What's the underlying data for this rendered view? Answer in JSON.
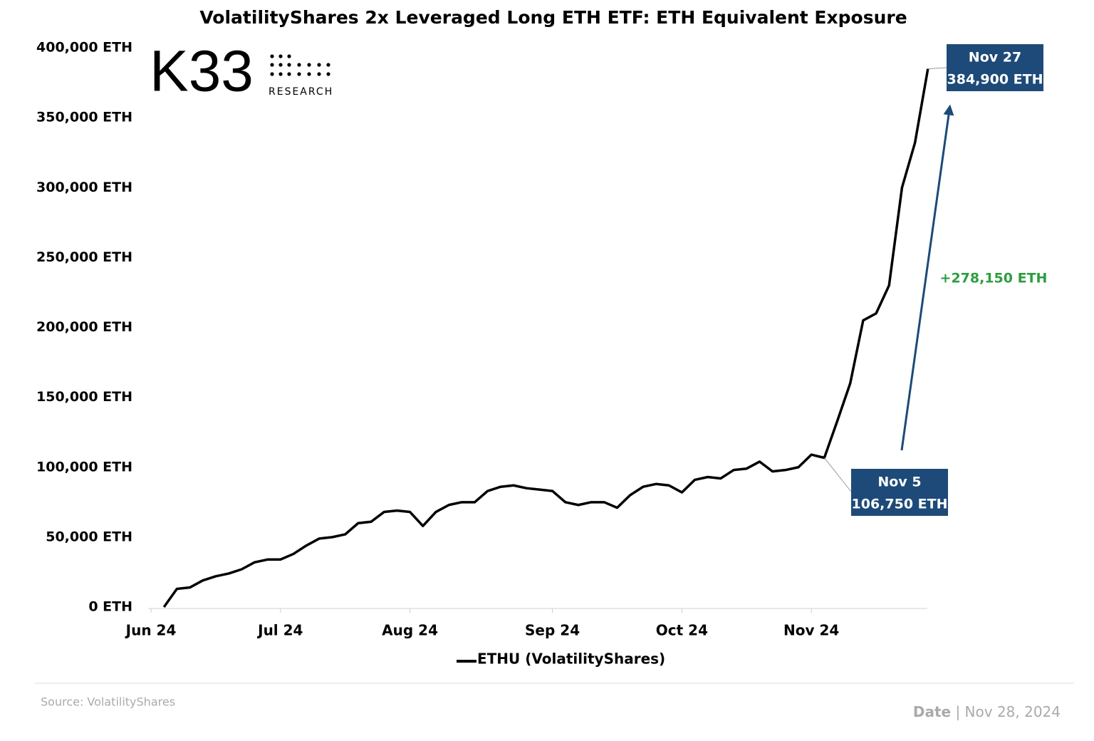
{
  "chart_data": {
    "type": "line",
    "title": "VolatilityShares 2x Leveraged Long ETH ETF: ETH Equivalent Exposure",
    "logo": {
      "mark": "K33",
      "sub": "RESEARCH"
    },
    "categories": [
      "Jun 24",
      null,
      null,
      null,
      null,
      null,
      null,
      null,
      null,
      null,
      "Jul 24",
      null,
      null,
      null,
      null,
      null,
      null,
      null,
      null,
      null,
      "Aug 24",
      null,
      null,
      null,
      null,
      null,
      null,
      null,
      null,
      null,
      null,
      "Sep 24",
      null,
      null,
      null,
      null,
      null,
      null,
      null,
      null,
      null,
      "Oct 24",
      null,
      null,
      null,
      null,
      null,
      null,
      null,
      null,
      null,
      "Nov 24",
      null,
      null,
      null,
      null,
      null,
      null,
      null,
      null,
      null
    ],
    "series": [
      {
        "name": "ETHU (VolatilityShares)",
        "color": "#000000",
        "values": [
          null,
          0,
          13000,
          14000,
          19000,
          22000,
          24000,
          27000,
          32000,
          34000,
          34000,
          38000,
          44000,
          49000,
          50000,
          52000,
          60000,
          61000,
          68000,
          69000,
          68000,
          58000,
          68000,
          73000,
          75000,
          75000,
          83000,
          86000,
          87000,
          85000,
          84000,
          83000,
          75000,
          73000,
          75000,
          75000,
          71000,
          80000,
          86000,
          88000,
          87000,
          82000,
          91000,
          93000,
          92000,
          98000,
          99000,
          104000,
          97000,
          98000,
          100000,
          109000,
          106750,
          133000,
          160000,
          205000,
          210000,
          230000,
          300000,
          332000,
          384900
        ]
      }
    ],
    "ylim": [
      0,
      400000
    ],
    "yticks": [
      {
        "value": 0,
        "label": "0 ETH"
      },
      {
        "value": 50000,
        "label": "50,000 ETH"
      },
      {
        "value": 100000,
        "label": "100,000 ETH"
      },
      {
        "value": 150000,
        "label": "150,000 ETH"
      },
      {
        "value": 200000,
        "label": "200,000 ETH"
      },
      {
        "value": 250000,
        "label": "250,000 ETH"
      },
      {
        "value": 300000,
        "label": "300,000 ETH"
      },
      {
        "value": 350000,
        "label": "350,000 ETH"
      },
      {
        "value": 400000,
        "label": "400,000 ETH"
      }
    ],
    "grid": false,
    "legend": "bottom",
    "annotations": [
      {
        "date": "Nov 27",
        "text": "384,900 ETH",
        "color": "#1d4a78"
      },
      {
        "date": "Nov 5",
        "text": "106,750 ETH",
        "color": "#1d4a78"
      },
      {
        "text": "+278,150 ETH",
        "color": "#2e9d40"
      }
    ],
    "source": "Source: VolatilityShares",
    "date_label": "Date",
    "separator": "|",
    "date": "Nov 28, 2024"
  }
}
